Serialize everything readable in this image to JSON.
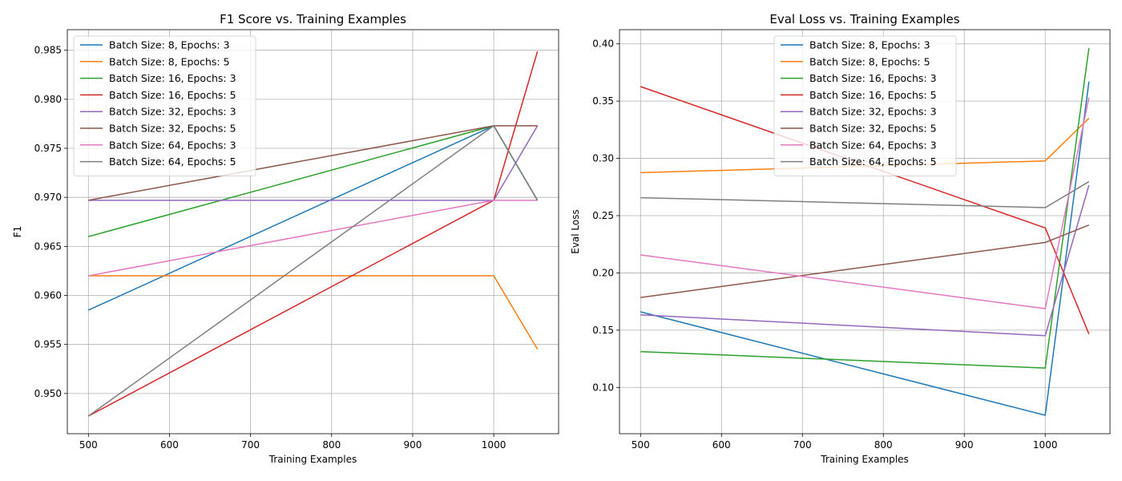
{
  "chart_data": [
    {
      "type": "line",
      "title": "F1 Score vs. Training Examples",
      "xlabel": "Training Examples",
      "ylabel": "F1",
      "xlim": [
        474,
        1080
      ],
      "ylim": [
        0.9459,
        0.9871
      ],
      "xticks": [
        500,
        600,
        700,
        800,
        900,
        1000
      ],
      "yticks": [
        0.95,
        0.955,
        0.96,
        0.965,
        0.97,
        0.975,
        0.98,
        0.985
      ],
      "ytick_labels": [
        "0.950",
        "0.955",
        "0.960",
        "0.965",
        "0.970",
        "0.975",
        "0.980",
        "0.985"
      ],
      "grid": true,
      "legend": "upper left",
      "series": [
        {
          "name": "Batch Size: 8, Epochs: 3",
          "color": "#1f77b4",
          "x": [
            500,
            1000,
            1054
          ],
          "y": [
            0.9585,
            0.9773,
            0.9697
          ]
        },
        {
          "name": "Batch Size: 8, Epochs: 5",
          "color": "#ff7f0e",
          "x": [
            500,
            1000,
            1054
          ],
          "y": [
            0.962,
            0.962,
            0.9545
          ]
        },
        {
          "name": "Batch Size: 16, Epochs: 3",
          "color": "#2ca02c",
          "x": [
            500,
            1000,
            1054
          ],
          "y": [
            0.966,
            0.9773,
            0.9697
          ]
        },
        {
          "name": "Batch Size: 16, Epochs: 5",
          "color": "#d62728",
          "x": [
            500,
            1000,
            1054
          ],
          "y": [
            0.9477,
            0.9697,
            0.9849
          ]
        },
        {
          "name": "Batch Size: 32, Epochs: 3",
          "color": "#9467bd",
          "x": [
            500,
            1000,
            1054
          ],
          "y": [
            0.9697,
            0.9697,
            0.9773
          ]
        },
        {
          "name": "Batch Size: 32, Epochs: 5",
          "color": "#8c564b",
          "x": [
            500,
            1000,
            1054
          ],
          "y": [
            0.9697,
            0.9773,
            0.9773
          ]
        },
        {
          "name": "Batch Size: 64, Epochs: 3",
          "color": "#e377c2",
          "x": [
            500,
            1000,
            1054
          ],
          "y": [
            0.962,
            0.9697,
            0.9697
          ]
        },
        {
          "name": "Batch Size: 64, Epochs: 5",
          "color": "#7f7f7f",
          "x": [
            500,
            1000,
            1054
          ],
          "y": [
            0.9477,
            0.9773,
            0.9697
          ]
        }
      ]
    },
    {
      "type": "line",
      "title": "Eval Loss vs. Training Examples",
      "xlabel": "Training Examples",
      "ylabel": "Eval Loss",
      "xlim": [
        474,
        1080
      ],
      "ylim": [
        0.0596,
        0.4124
      ],
      "xticks": [
        500,
        600,
        700,
        800,
        900,
        1000
      ],
      "yticks": [
        0.1,
        0.15,
        0.2,
        0.25,
        0.3,
        0.35,
        0.4
      ],
      "ytick_labels": [
        "0.10",
        "0.15",
        "0.20",
        "0.25",
        "0.30",
        "0.35",
        "0.40"
      ],
      "grid": true,
      "legend": "upper center",
      "series": [
        {
          "name": "Batch Size: 8, Epochs: 3",
          "color": "#1f77b4",
          "x": [
            500,
            1000,
            1054
          ],
          "y": [
            0.166,
            0.0757,
            0.367
          ]
        },
        {
          "name": "Batch Size: 8, Epochs: 5",
          "color": "#ff7f0e",
          "x": [
            500,
            1000,
            1054
          ],
          "y": [
            0.2875,
            0.2978,
            0.3351
          ]
        },
        {
          "name": "Batch Size: 16, Epochs: 3",
          "color": "#2ca02c",
          "x": [
            500,
            1000,
            1054
          ],
          "y": [
            0.1313,
            0.1169,
            0.3964
          ]
        },
        {
          "name": "Batch Size: 16, Epochs: 5",
          "color": "#d62728",
          "x": [
            500,
            1000,
            1054
          ],
          "y": [
            0.3627,
            0.2393,
            0.1467
          ]
        },
        {
          "name": "Batch Size: 32, Epochs: 3",
          "color": "#9467bd",
          "x": [
            500,
            1000,
            1054
          ],
          "y": [
            0.1634,
            0.1452,
            0.2765
          ]
        },
        {
          "name": "Batch Size: 32, Epochs: 5",
          "color": "#8c564b",
          "x": [
            500,
            1000,
            1054
          ],
          "y": [
            0.1785,
            0.2266,
            0.2418
          ]
        },
        {
          "name": "Batch Size: 64, Epochs: 3",
          "color": "#e377c2",
          "x": [
            500,
            1000,
            1054
          ],
          "y": [
            0.2157,
            0.1688,
            0.3531
          ]
        },
        {
          "name": "Batch Size: 64, Epochs: 5",
          "color": "#7f7f7f",
          "x": [
            500,
            1000,
            1054
          ],
          "y": [
            0.2657,
            0.257,
            0.2797
          ]
        }
      ]
    }
  ]
}
